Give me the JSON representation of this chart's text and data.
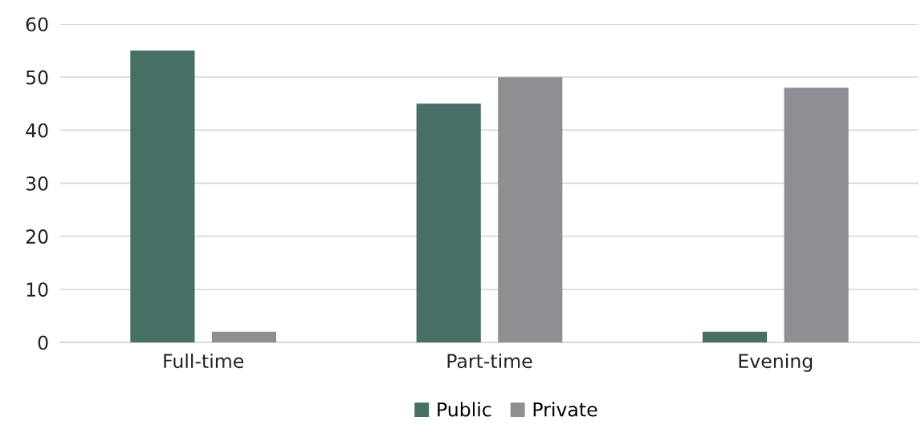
{
  "chart_data": {
    "type": "bar",
    "categories": [
      "Full-time",
      "Part-time",
      "Evening"
    ],
    "series": [
      {
        "name": "Public",
        "color": "#476f66",
        "values": [
          55,
          45,
          2
        ]
      },
      {
        "name": "Private",
        "color": "#8e8f92",
        "values": [
          2,
          50,
          48
        ]
      }
    ],
    "ylim": [
      0,
      60
    ],
    "yticks": [
      0,
      10,
      20,
      30,
      40,
      50,
      60
    ],
    "grid": "y",
    "legend": "bottom"
  }
}
